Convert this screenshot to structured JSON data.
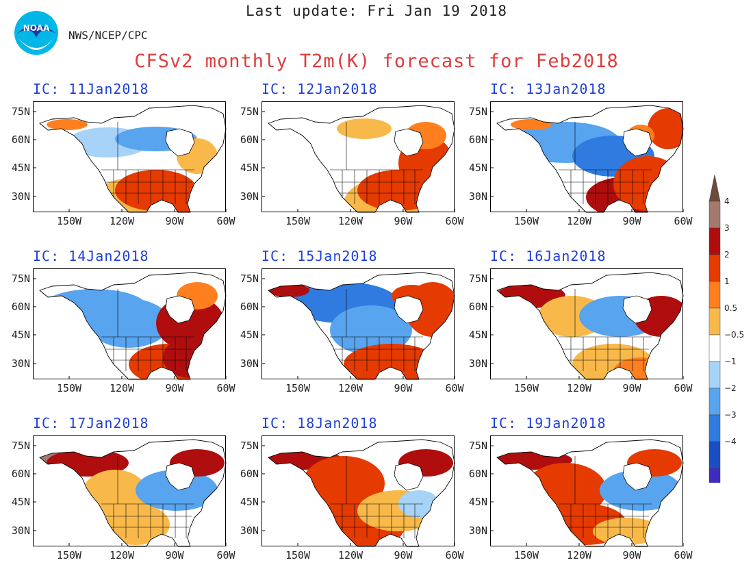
{
  "header": {
    "last_update": "Last update: Fri Jan 19 2018",
    "org": "NWS/NCEP/CPC",
    "title": "CFSv2 monthly T2m(K) forecast for Feb2018",
    "logo_text": "NOAA"
  },
  "axes": {
    "lat_labels": [
      "75N",
      "60N",
      "45N",
      "30N"
    ],
    "lon_labels": [
      "150W",
      "120W",
      "90W",
      "60W"
    ]
  },
  "panels": [
    {
      "title": "IC: 11Jan2018",
      "pattern": "warm_se_cool_nw"
    },
    {
      "title": "IC: 12Jan2018",
      "pattern": "warm_east_strong"
    },
    {
      "title": "IC: 13Jan2018",
      "pattern": "cold_north_warm_se"
    },
    {
      "title": "IC: 14Jan2018",
      "pattern": "cold_west_warm_east"
    },
    {
      "title": "IC: 15Jan2018",
      "pattern": "cold_canada_warm_edges"
    },
    {
      "title": "IC: 16Jan2018",
      "pattern": "warm_alaska_cool_central"
    },
    {
      "title": "IC: 17Jan2018",
      "pattern": "warm_west_cool_ne"
    },
    {
      "title": "IC: 18Jan2018",
      "pattern": "warm_widespread"
    },
    {
      "title": "IC: 19Jan2018",
      "pattern": "warm_west_cool_east"
    }
  ],
  "colorbar": {
    "levels": [
      "4",
      "3",
      "2",
      "1",
      "0.5",
      "−0.5",
      "−1",
      "−2",
      "−3",
      "−4"
    ],
    "colors": [
      "#6e4a3a",
      "#a37a6e",
      "#b00e0e",
      "#e53a00",
      "#ff7f1e",
      "#f9b94a",
      "#ffffff",
      "#a6d3f7",
      "#58a4ee",
      "#2f7be0",
      "#1a4fc4",
      "#3e2cc0",
      "#3b0fa6"
    ]
  }
}
